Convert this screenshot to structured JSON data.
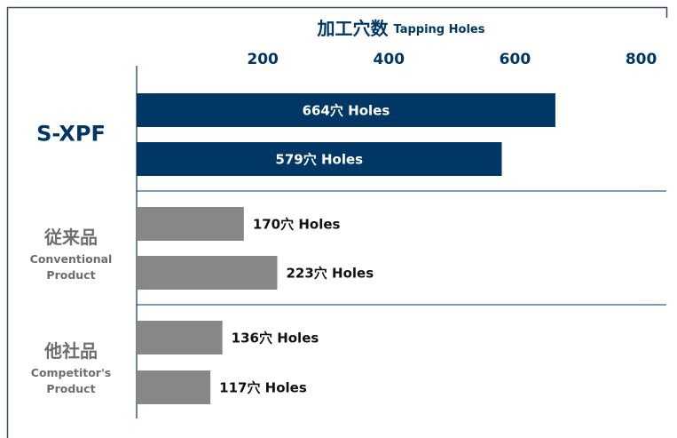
{
  "chart_data": {
    "type": "bar",
    "orientation": "horizontal",
    "title": "加工穴数",
    "subtitle": "Tapping Holes",
    "xlim": [
      0,
      840
    ],
    "xticks": [
      200,
      400,
      600,
      800
    ],
    "groups": [
      {
        "label": "S-XPF",
        "sublabel": [],
        "color": "#003764",
        "label_position": "inside",
        "values": [
          664,
          579
        ],
        "value_labels": [
          "664穴 Holes",
          "579穴 Holes"
        ]
      },
      {
        "label": "従来品",
        "sublabel": [
          "Conventional",
          "Product"
        ],
        "color": "#878787",
        "label_position": "outside",
        "values": [
          170,
          223
        ],
        "value_labels": [
          "170穴 Holes",
          "223穴 Holes"
        ]
      },
      {
        "label": "他社品",
        "sublabel": [
          "Competitor's",
          "Product"
        ],
        "color": "#878787",
        "label_position": "outside",
        "values": [
          136,
          117
        ],
        "value_labels": [
          "136穴 Holes",
          "117穴 Holes"
        ]
      }
    ]
  }
}
